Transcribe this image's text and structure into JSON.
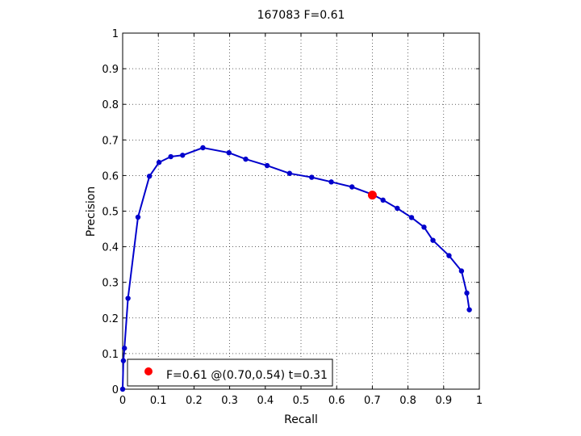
{
  "chart_data": {
    "type": "line",
    "title": "167083 F=0.61",
    "xlabel": "Recall",
    "ylabel": "Precision",
    "xlim": [
      0,
      1
    ],
    "ylim": [
      0,
      1
    ],
    "grid": true,
    "legend_placement": "bottom-left",
    "xticks": [
      "0",
      "0.1",
      "0.2",
      "0.3",
      "0.4",
      "0.5",
      "0.6",
      "0.7",
      "0.8",
      "0.9",
      "1"
    ],
    "yticks": [
      "0",
      "0.1",
      "0.2",
      "0.3",
      "0.4",
      "0.5",
      "0.6",
      "0.7",
      "0.8",
      "0.9",
      "1"
    ],
    "series": [
      {
        "color": "#0000cc",
        "points": [
          [
            0.0,
            0.0
          ],
          [
            0.002,
            0.08
          ],
          [
            0.005,
            0.115
          ],
          [
            0.015,
            0.255
          ],
          [
            0.043,
            0.483
          ],
          [
            0.075,
            0.598
          ],
          [
            0.102,
            0.637
          ],
          [
            0.135,
            0.653
          ],
          [
            0.168,
            0.657
          ],
          [
            0.225,
            0.678
          ],
          [
            0.298,
            0.664
          ],
          [
            0.345,
            0.646
          ],
          [
            0.405,
            0.628
          ],
          [
            0.468,
            0.606
          ],
          [
            0.53,
            0.595
          ],
          [
            0.585,
            0.582
          ],
          [
            0.643,
            0.568
          ],
          [
            0.7,
            0.547
          ],
          [
            0.73,
            0.531
          ],
          [
            0.77,
            0.508
          ],
          [
            0.81,
            0.482
          ],
          [
            0.845,
            0.455
          ],
          [
            0.87,
            0.418
          ],
          [
            0.915,
            0.375
          ],
          [
            0.95,
            0.332
          ],
          [
            0.965,
            0.27
          ],
          [
            0.972,
            0.223
          ]
        ]
      }
    ],
    "best_point": {
      "recall": 0.7,
      "precision": 0.545,
      "color": "#ff0000",
      "legend_label": "F=0.61 @(0.70,0.54) t=0.31"
    }
  }
}
